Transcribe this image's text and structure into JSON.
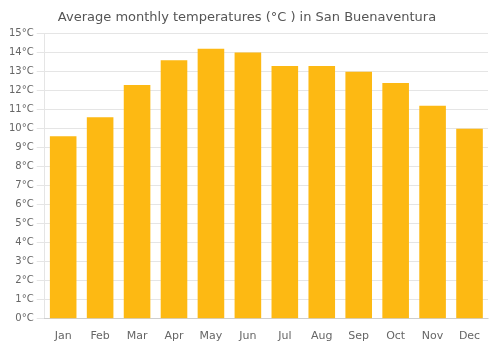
{
  "chart_data": {
    "type": "bar",
    "title": "Average monthly temperatures (°C ) in San Buenaventura",
    "categories": [
      "Jan",
      "Feb",
      "Mar",
      "Apr",
      "May",
      "Jun",
      "Jul",
      "Aug",
      "Sep",
      "Oct",
      "Nov",
      "Dec"
    ],
    "values": [
      9.6,
      10.6,
      12.3,
      13.6,
      14.2,
      14.0,
      13.3,
      13.3,
      13.0,
      12.4,
      11.2,
      10.0
    ],
    "color": "#FDB913",
    "ylim": [
      0,
      15
    ],
    "yticks": [
      {
        "value": 0,
        "label": "0°C"
      },
      {
        "value": 1,
        "label": "1°C"
      },
      {
        "value": 2,
        "label": "2°C"
      },
      {
        "value": 3,
        "label": "3°C"
      },
      {
        "value": 4,
        "label": "4°C"
      },
      {
        "value": 5,
        "label": "5°C"
      },
      {
        "value": 6,
        "label": "6°C"
      },
      {
        "value": 7,
        "label": "7°C"
      },
      {
        "value": 8,
        "label": "8°C"
      },
      {
        "value": 9,
        "label": "9°C"
      },
      {
        "value": 10,
        "label": "10°C"
      },
      {
        "value": 11,
        "label": "11°C"
      },
      {
        "value": 12,
        "label": "12°C"
      },
      {
        "value": 13,
        "label": "13°C"
      },
      {
        "value": 14,
        "label": "14°C"
      },
      {
        "value": 15,
        "label": "15°C"
      }
    ],
    "grid": true
  }
}
